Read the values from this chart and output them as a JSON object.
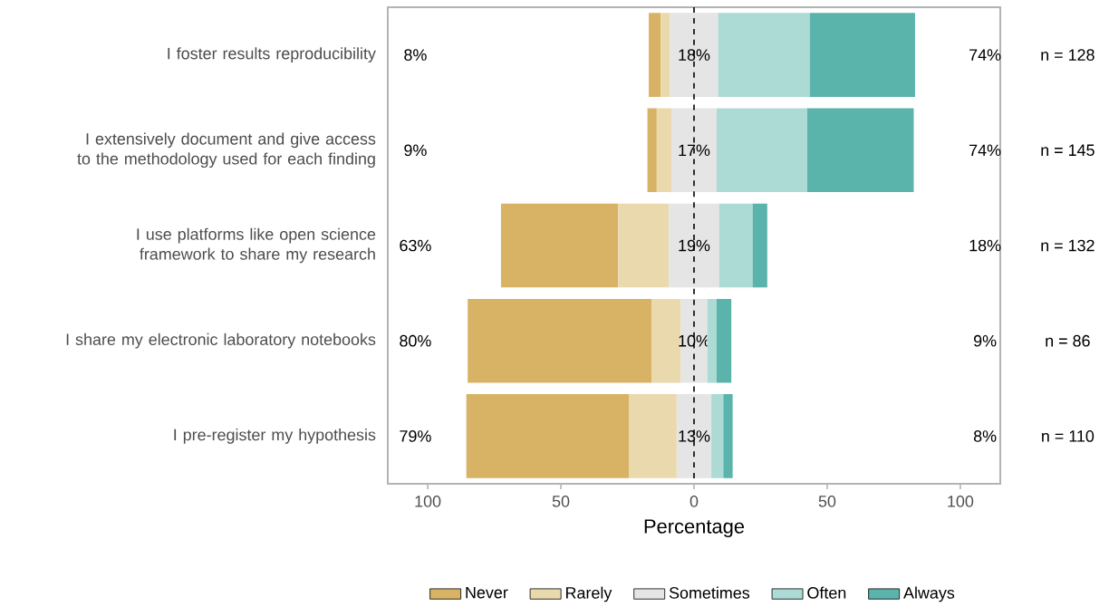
{
  "chart_data": {
    "type": "bar",
    "orientation": "horizontal",
    "categories": [
      "I foster results reproducibility",
      "I extensively document and give access to the methodology used for each finding",
      "I use platforms like open science framework to share my research",
      "I share my electronic laboratory notebooks",
      "I pre-register my hypothesis"
    ],
    "series": [
      {
        "name": "Never",
        "color": "#d8b365",
        "values": [
          4.5,
          3.5,
          44,
          69,
          61
        ],
        "base": [
          -17,
          -17.5,
          -72.5,
          -85,
          -85.5
        ]
      },
      {
        "name": "Rarely",
        "color": "#ebd9ae",
        "values": [
          3.5,
          5.5,
          19,
          11,
          18
        ],
        "base": [
          -12.5,
          -14,
          -28.5,
          -16,
          -24.5
        ]
      },
      {
        "name": "Sometimes",
        "color": "#e5e5e5",
        "values": [
          18,
          17,
          19,
          10,
          13
        ],
        "base": [
          -9,
          -8.5,
          -9.5,
          -5,
          -6.5
        ],
        "value_labels": [
          "18%",
          "17%",
          "19%",
          "10%",
          "13%"
        ]
      },
      {
        "name": "Often",
        "color": "#acdad4",
        "values": [
          34.5,
          34,
          12.5,
          3.5,
          4.5
        ],
        "base": [
          9,
          8.5,
          9.5,
          5,
          6.5
        ]
      },
      {
        "name": "Always",
        "color": "#5ab4ac",
        "values": [
          39.5,
          40,
          5.5,
          5.5,
          3.5
        ],
        "base": [
          43.5,
          42.5,
          22,
          8.5,
          11
        ]
      }
    ],
    "annotations": [
      "8%",
      "74%",
      "n = 128",
      "9%",
      "74%",
      "n = 145",
      "63%",
      "18%",
      "n = 132",
      "80%",
      "9%",
      "n = 86",
      "79%",
      "8%",
      "n = 110"
    ],
    "xlabel": "Percentage",
    "xlim": [
      -115,
      115
    ],
    "xticks": [
      {
        "value": -100,
        "label": "100"
      },
      {
        "value": -50,
        "label": "50"
      },
      0,
      50,
      100
    ],
    "ref_lines": [
      {
        "axis": "x",
        "value": 0,
        "color": "#000000",
        "line_style": "dashed"
      }
    ],
    "legend": "bottom"
  }
}
